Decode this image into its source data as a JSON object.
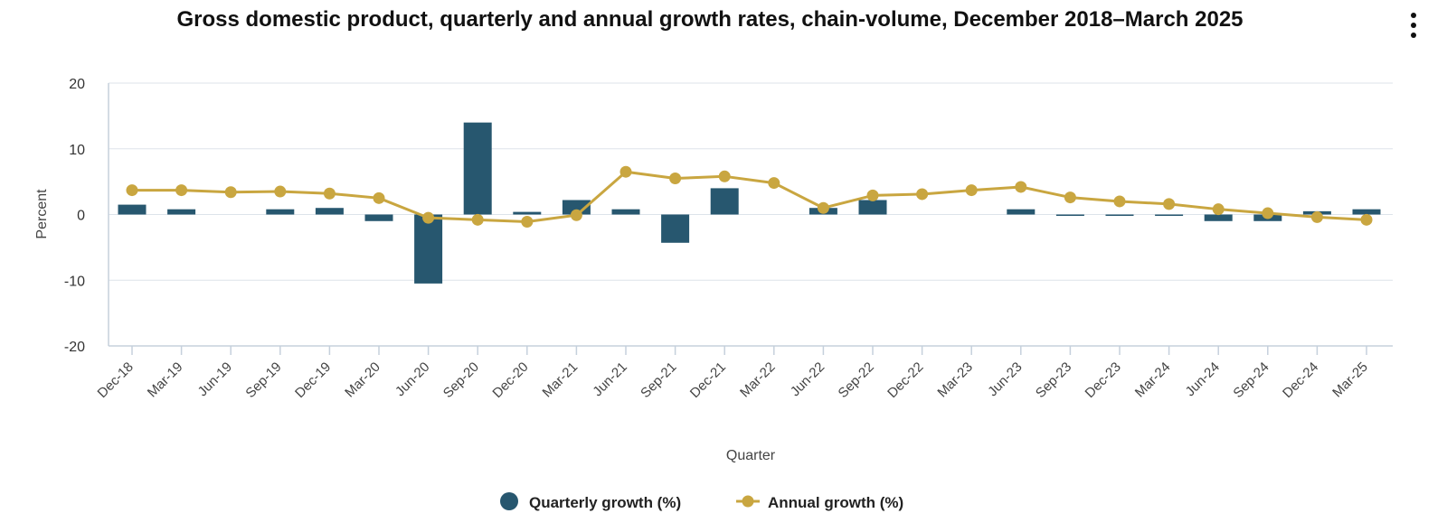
{
  "title": "Gross domestic product, quarterly and annual growth rates, chain-volume, December 2018–March 2025",
  "menu_icon": "kebab-menu-icon",
  "colors": {
    "bar": "#27576F",
    "line": "#C9A640",
    "grid": "#DDE3EA",
    "axis": "#C5D0DC"
  },
  "chart_data": {
    "type": "bar+line",
    "xlabel": "Quarter",
    "ylabel": "Percent",
    "ylim": [
      -20,
      20
    ],
    "yticks": [
      "20",
      "10",
      "0",
      "-10",
      "-20"
    ],
    "grid": true,
    "legend_position": "bottom",
    "categories": [
      "Dec-18",
      "Mar-19",
      "Jun-19",
      "Sep-19",
      "Dec-19",
      "Mar-20",
      "Jun-20",
      "Sep-20",
      "Dec-20",
      "Mar-21",
      "Jun-21",
      "Sep-21",
      "Dec-21",
      "Mar-22",
      "Jun-22",
      "Sep-22",
      "Dec-22",
      "Mar-23",
      "Jun-23",
      "Sep-23",
      "Dec-23",
      "Mar-24",
      "Jun-24",
      "Sep-24",
      "Dec-24",
      "Mar-25"
    ],
    "series": [
      {
        "name": "Quarterly growth (%)",
        "type": "bar",
        "values": [
          1.5,
          0.8,
          0.0,
          0.8,
          1.0,
          -1.0,
          -10.5,
          14.0,
          0.4,
          2.2,
          0.8,
          -4.3,
          4.0,
          0.0,
          1.0,
          2.2,
          0.0,
          0.0,
          0.8,
          -0.2,
          -0.2,
          -0.2,
          -1.0,
          -1.0,
          0.5,
          0.8
        ]
      },
      {
        "name": "Annual growth (%)",
        "type": "line",
        "values": [
          3.7,
          3.7,
          3.4,
          3.5,
          3.2,
          2.5,
          -0.5,
          -0.8,
          -1.1,
          -0.1,
          6.5,
          5.5,
          5.8,
          4.8,
          1.0,
          2.9,
          3.1,
          3.7,
          4.2,
          2.6,
          2.0,
          1.6,
          0.8,
          0.2,
          -0.4,
          -0.8
        ]
      }
    ]
  }
}
